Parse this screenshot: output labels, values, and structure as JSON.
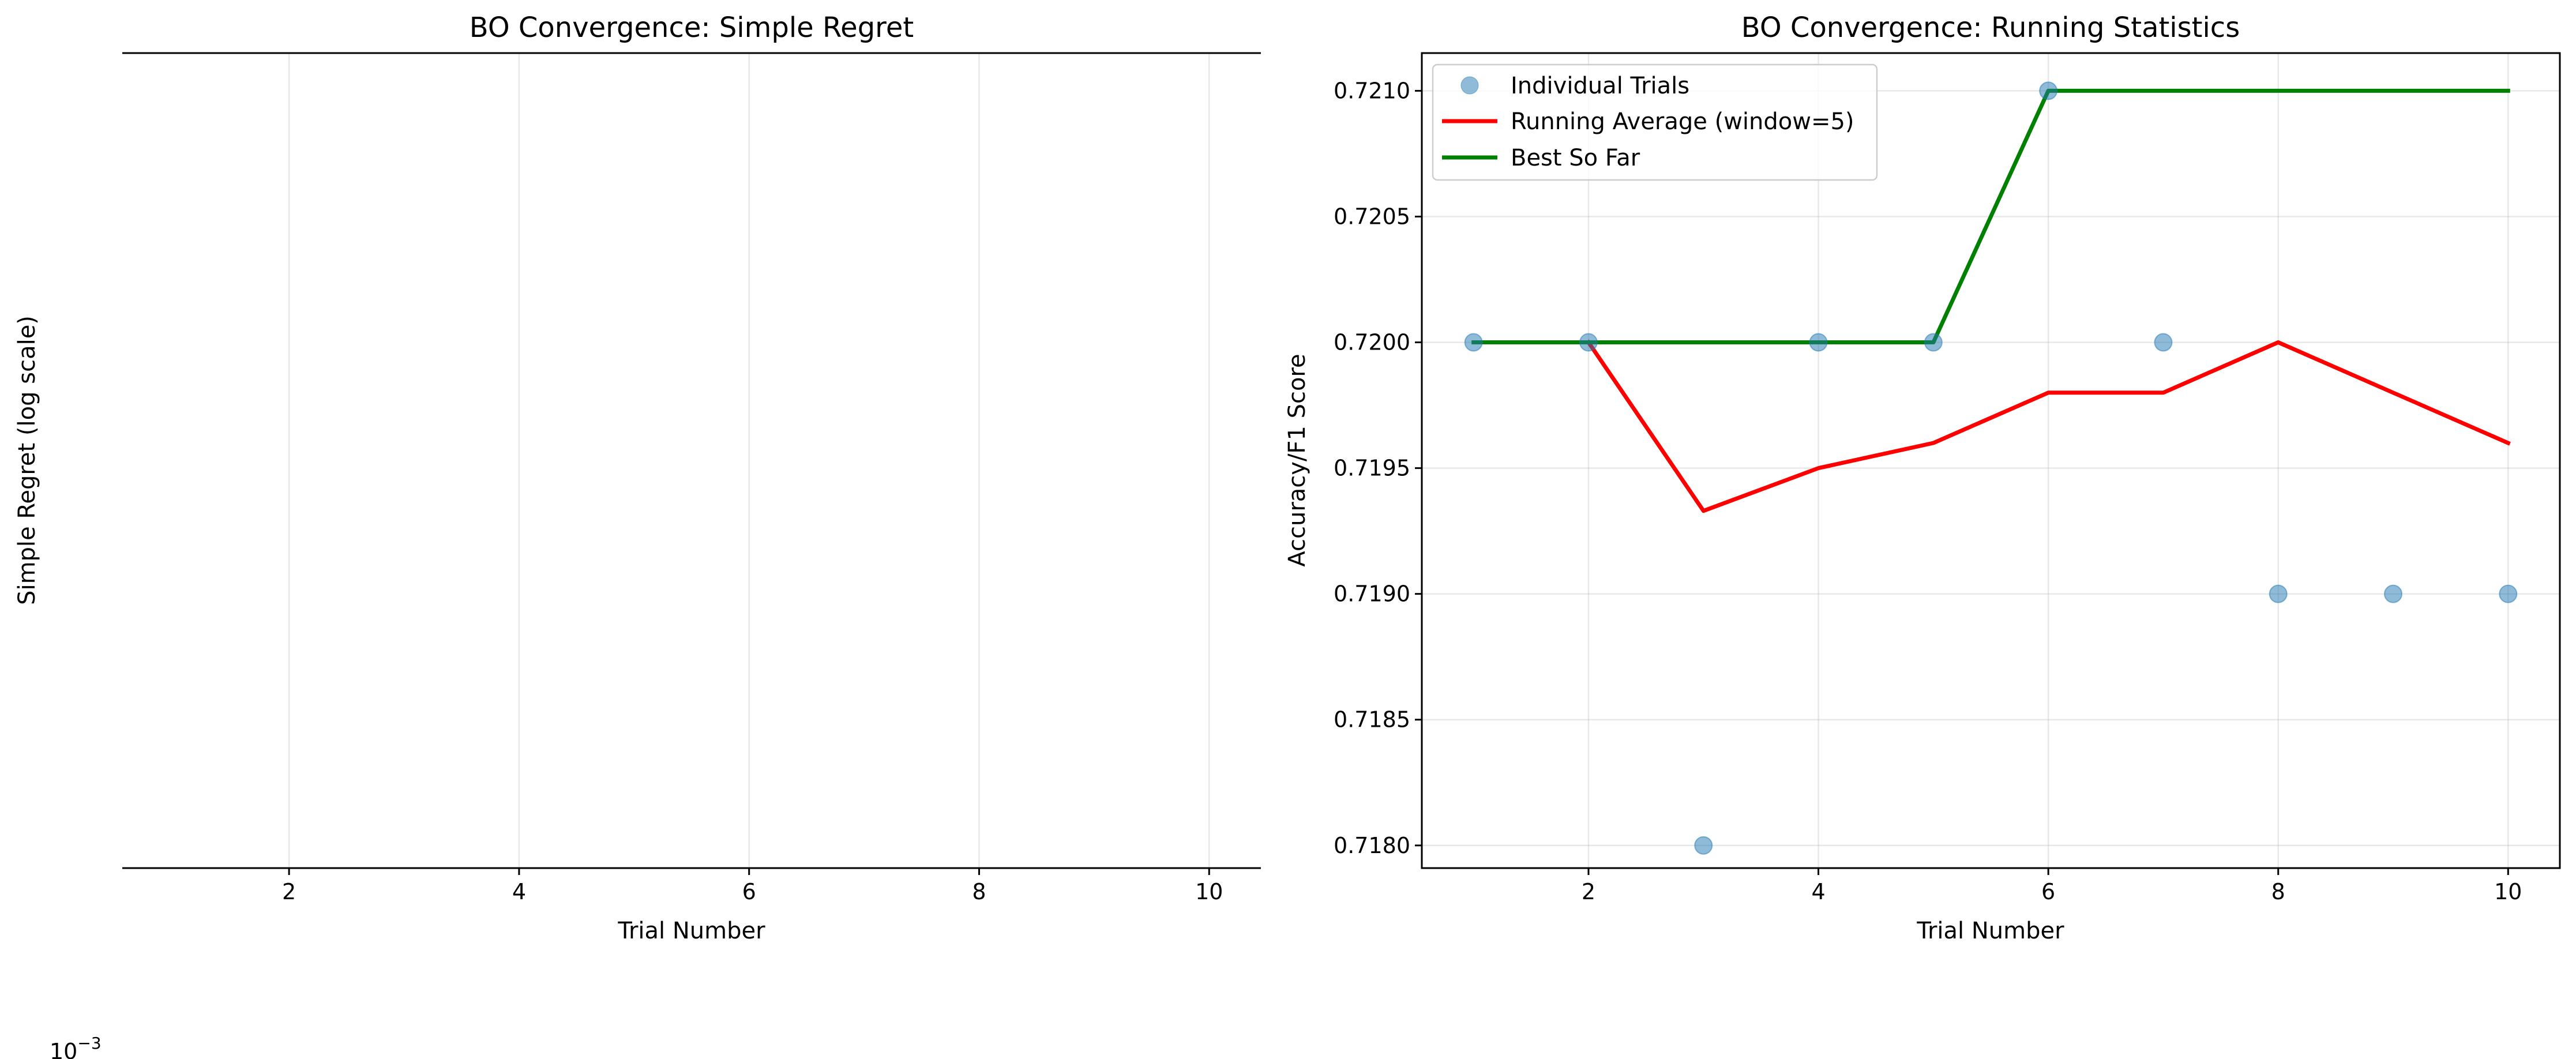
{
  "chart_data": [
    {
      "type": "line",
      "title": "BO Convergence: Simple Regret",
      "xlabel": "Trial Number",
      "ylabel": "Simple Regret (log scale)",
      "yscale": "log",
      "offset_text": "10",
      "offset_exponent": "−3",
      "xlim": [
        0.55,
        10.45
      ],
      "xticks": [
        2,
        4,
        6,
        8,
        10
      ],
      "grid": true,
      "series": []
    },
    {
      "type": "line",
      "title": "BO Convergence: Running Statistics",
      "xlabel": "Trial Number",
      "ylabel": "Accuracy/F1 Score",
      "xlim": [
        0.55,
        10.45
      ],
      "ylim": [
        0.71791,
        0.72115
      ],
      "xticks": [
        2,
        4,
        6,
        8,
        10
      ],
      "yticks": [
        0.718,
        0.7185,
        0.719,
        0.7195,
        0.72,
        0.7205,
        0.721
      ],
      "ytick_labels": [
        "0.7180",
        "0.7185",
        "0.7190",
        "0.7195",
        "0.7200",
        "0.7205",
        "0.7210"
      ],
      "grid": true,
      "legend_position": "top-left",
      "series": [
        {
          "name": "Individual Trials",
          "kind": "scatter",
          "color": "#1f77b4",
          "x": [
            1,
            2,
            3,
            4,
            5,
            6,
            7,
            8,
            9,
            10
          ],
          "values": [
            0.72,
            0.72,
            0.718,
            0.72,
            0.72,
            0.721,
            0.72,
            0.719,
            0.719,
            0.719
          ]
        },
        {
          "name": "Running Average (window=5)",
          "kind": "line",
          "color": "#ff0000",
          "x": [
            2,
            3,
            4,
            5,
            6,
            7,
            8,
            9,
            10
          ],
          "values": [
            0.72,
            0.71933,
            0.7195,
            0.7196,
            0.7198,
            0.7198,
            0.72,
            0.7198,
            0.7196
          ]
        },
        {
          "name": "Best So Far",
          "kind": "line",
          "color": "#008000",
          "x": [
            1,
            2,
            3,
            4,
            5,
            6,
            7,
            8,
            9,
            10
          ],
          "values": [
            0.72,
            0.72,
            0.72,
            0.72,
            0.72,
            0.721,
            0.721,
            0.721,
            0.721,
            0.721
          ]
        }
      ]
    }
  ]
}
